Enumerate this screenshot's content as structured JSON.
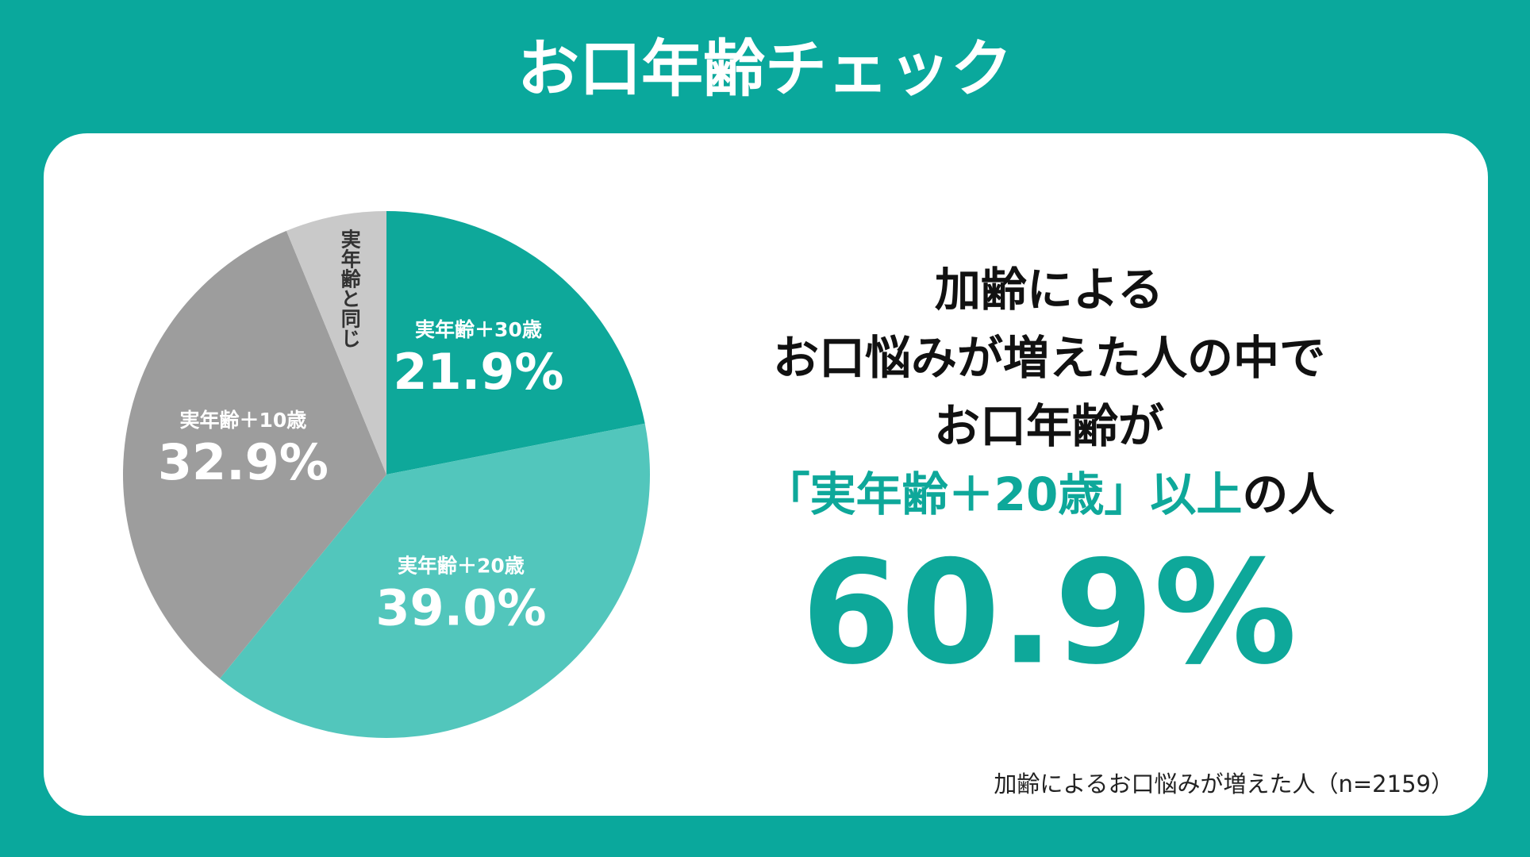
{
  "chart_data": {
    "type": "pie",
    "title": "お口年齢チェック",
    "categories": [
      "実年齢＋30歳",
      "実年齢＋20歳",
      "実年齢＋10歳",
      "実年齢と同じ"
    ],
    "values": [
      21.9,
      39.0,
      32.9,
      6.2
    ],
    "value_labels": [
      "21.9%",
      "39.0%",
      "32.9%",
      null
    ],
    "colors": [
      "#0ea89a",
      "#52c6bc",
      "#9d9d9d",
      "#c9c9c9"
    ],
    "annotations": {
      "headline": [
        "加齢による",
        "お口悩みが増えた人の中で",
        "お口年齢が"
      ],
      "highlight_line": {
        "accent": "「実年齢＋20歳」以上",
        "rest": "の人"
      },
      "big_figure": "60.9%",
      "note": "加齢によるお口悩みが増えた人（n=2159）"
    }
  }
}
